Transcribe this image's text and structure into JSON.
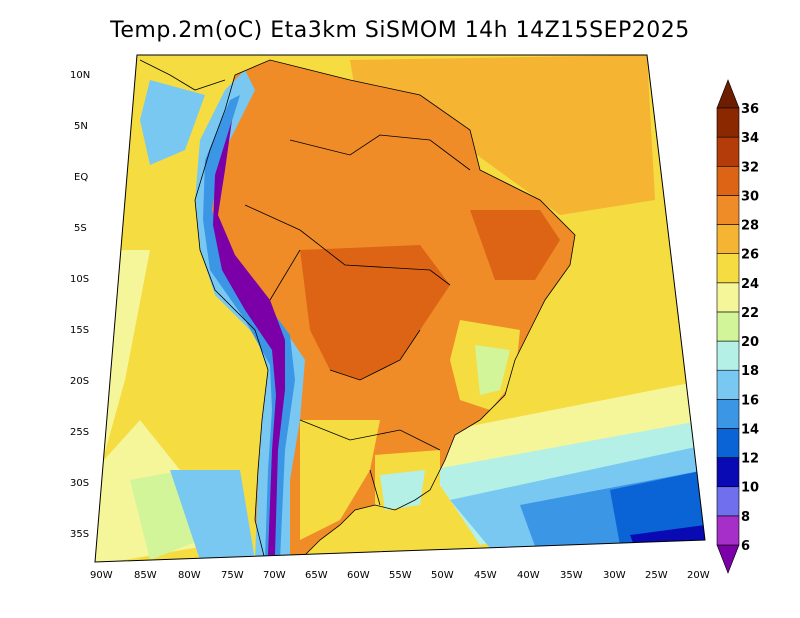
{
  "title": "Temp.2m(oC) Eta3km SiSMOM 14h 14Z15SEP2025",
  "lat_ticks": [
    "10N",
    "5N",
    "EQ",
    "5S",
    "10S",
    "15S",
    "20S",
    "25S",
    "30S",
    "35S"
  ],
  "lon_ticks": [
    "90W",
    "85W",
    "80W",
    "75W",
    "70W",
    "65W",
    "60W",
    "55W",
    "50W",
    "45W",
    "40W",
    "35W",
    "30W",
    "25W",
    "20W"
  ],
  "colorbar": {
    "labels": [
      "6",
      "8",
      "10",
      "12",
      "14",
      "16",
      "18",
      "20",
      "22",
      "24",
      "26",
      "28",
      "30",
      "32",
      "34",
      "36"
    ],
    "colors": [
      "#7b00a8",
      "#a52fc8",
      "#7070ef",
      "#0a0ab4",
      "#0a64d6",
      "#3c96e6",
      "#78c8f2",
      "#b4f0e6",
      "#d2f59a",
      "#f5f59a",
      "#f5dc41",
      "#f5b432",
      "#f08c28",
      "#dc6414",
      "#b43c0a",
      "#8c2800",
      "#6e1e00"
    ]
  },
  "fill_colors": {
    "ocean_cool": "#3c96e6",
    "ocean_cold": "#0a64d6",
    "ocean_mild": "#78c8f2",
    "ocean_warm": "#f5dc41",
    "ocean_hot": "#f5b432",
    "land_hot": "#f08c28",
    "land_very_hot": "#dc6414",
    "andes": "#7b00a8",
    "highland": "#d2f59a"
  }
}
